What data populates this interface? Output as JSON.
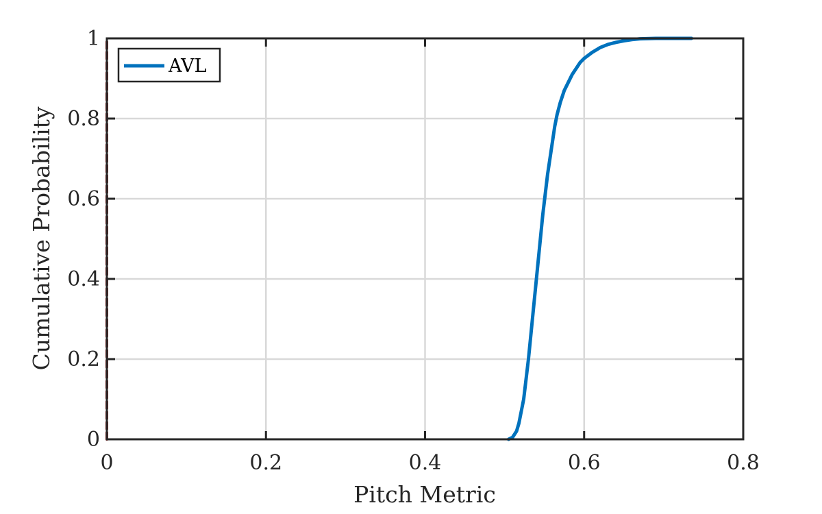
{
  "chart_data": {
    "type": "line",
    "xlabel": "Pitch Metric",
    "ylabel": "Cumulative Probability",
    "xlim": [
      0,
      0.8
    ],
    "ylim": [
      0,
      1
    ],
    "xticks": [
      0,
      0.2,
      0.4,
      0.6,
      0.8
    ],
    "xtick_labels": [
      "0",
      "0.2",
      "0.4",
      "0.6",
      "0.8"
    ],
    "yticks": [
      0,
      0.2,
      0.4,
      0.6,
      0.8,
      1
    ],
    "ytick_labels": [
      "0",
      "0.2",
      "0.4",
      "0.6",
      "0.8",
      "1"
    ],
    "grid": true,
    "legend_position": "top-left",
    "series": [
      {
        "name": "AVL",
        "color": "#0072BD",
        "x": [
          0.505,
          0.51,
          0.515,
          0.518,
          0.521,
          0.524,
          0.527,
          0.53,
          0.533,
          0.536,
          0.539,
          0.542,
          0.545,
          0.548,
          0.551,
          0.554,
          0.557,
          0.56,
          0.563,
          0.566,
          0.57,
          0.575,
          0.58,
          0.585,
          0.59,
          0.595,
          0.6,
          0.61,
          0.62,
          0.63,
          0.64,
          0.65,
          0.66,
          0.67,
          0.69,
          0.71,
          0.735
        ],
        "y": [
          0.0,
          0.005,
          0.02,
          0.04,
          0.07,
          0.1,
          0.15,
          0.2,
          0.26,
          0.32,
          0.38,
          0.44,
          0.5,
          0.56,
          0.61,
          0.66,
          0.7,
          0.74,
          0.78,
          0.81,
          0.84,
          0.87,
          0.89,
          0.91,
          0.925,
          0.94,
          0.95,
          0.965,
          0.977,
          0.985,
          0.99,
          0.994,
          0.997,
          0.999,
          1.0,
          1.0,
          1.0
        ]
      },
      {
        "color": "#8B1A1A",
        "style": "dashed",
        "x": [
          0,
          0
        ],
        "y": [
          0,
          1
        ]
      }
    ]
  }
}
